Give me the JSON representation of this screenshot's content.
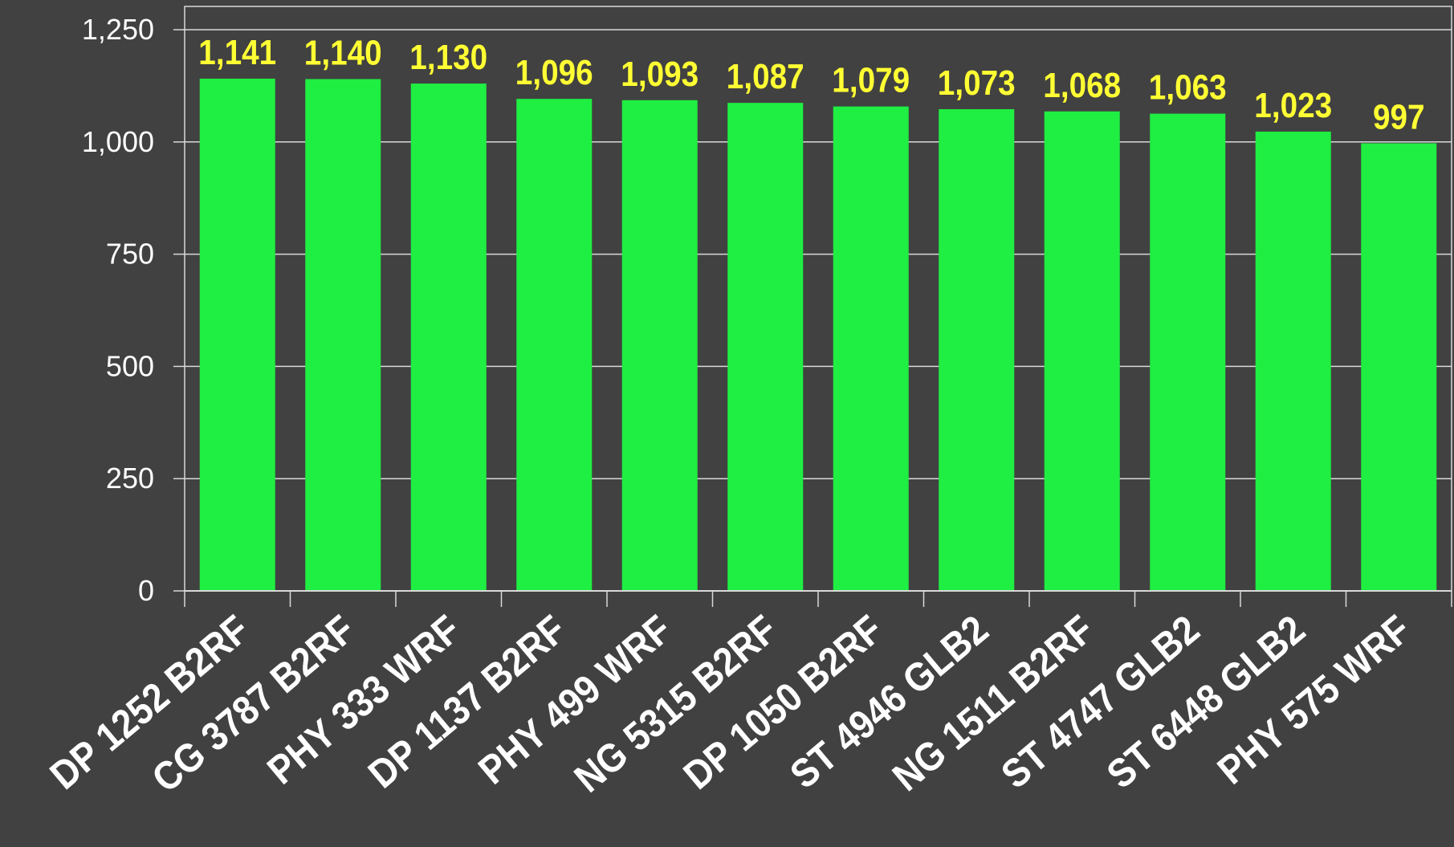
{
  "colors": {
    "background": "#414141",
    "bar": "#1fee42",
    "data_label": "#ffff33",
    "axis_text": "#ffffff",
    "grid": "#d9d9d9"
  },
  "chart_data": {
    "type": "bar",
    "title": "",
    "xlabel": "",
    "ylabel": "",
    "ylim": [
      0,
      1250
    ],
    "yticks": [
      0,
      250,
      500,
      750,
      1000,
      1250
    ],
    "ytick_labels": [
      "0",
      "250",
      "500",
      "750",
      "1,000",
      "1,250"
    ],
    "grid": true,
    "legend": "none",
    "categories": [
      "DP 1252 B2RF",
      "CG 3787 B2RF",
      "PHY 333 WRF",
      "DP 1137 B2RF",
      "PHY 499 WRF",
      "NG 5315 B2RF",
      "DP 1050 B2RF",
      "ST 4946 GLB2",
      "NG 1511 B2RF",
      "ST 4747 GLB2",
      "ST 6448 GLB2",
      "PHY 575 WRF"
    ],
    "values": [
      1141,
      1140,
      1130,
      1096,
      1093,
      1087,
      1079,
      1073,
      1068,
      1063,
      1023,
      997
    ],
    "data_labels": [
      "1,141",
      "1,140",
      "1,130",
      "1,096",
      "1,093",
      "1,087",
      "1,079",
      "1,073",
      "1,068",
      "1,063",
      "1,023",
      "997"
    ]
  }
}
